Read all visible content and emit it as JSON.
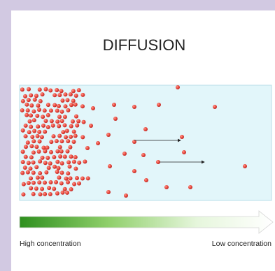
{
  "header": {
    "title": "DIFFUSION"
  },
  "gradient": {
    "left_label": "High concentration",
    "right_label": "Low concentration"
  }
}
